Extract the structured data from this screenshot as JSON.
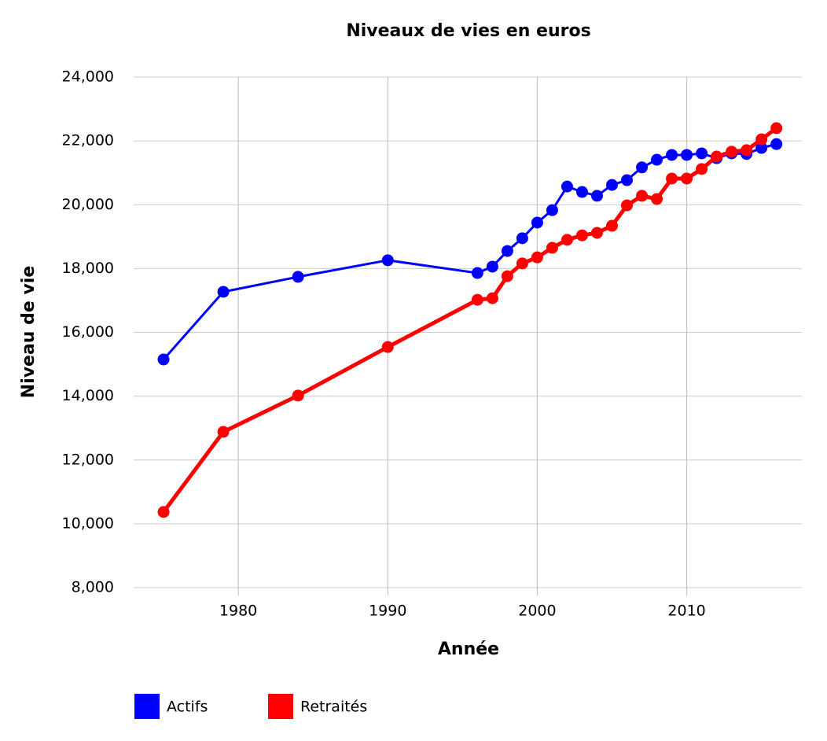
{
  "chart_data": {
    "type": "line",
    "title": "Niveaux de vies en euros",
    "x_label": "Année",
    "y_label": "Niveau de vie",
    "x": [
      1975,
      1979,
      1984,
      1990,
      1996,
      1997,
      1998,
      1999,
      2000,
      2001,
      2002,
      2003,
      2004,
      2005,
      2006,
      2007,
      2008,
      2009,
      2010,
      2011,
      2012,
      2013,
      2014,
      2015,
      2016
    ],
    "series": [
      {
        "name": "Actifs",
        "color": "#0000ff",
        "values": [
          15150,
          17270,
          17740,
          18260,
          17860,
          18060,
          18550,
          18950,
          19440,
          19830,
          20570,
          20400,
          20280,
          20620,
          20770,
          21170,
          21410,
          21560,
          21560,
          21610,
          21460,
          21610,
          21590,
          21780,
          21900
        ]
      },
      {
        "name": "Retraités",
        "color": "#ff0000",
        "values": [
          10370,
          12880,
          14020,
          15540,
          17020,
          17070,
          17760,
          18160,
          18350,
          18650,
          18900,
          19040,
          19120,
          19340,
          19980,
          20280,
          20180,
          20820,
          20820,
          21120,
          21510,
          21660,
          21710,
          22050,
          22400
        ]
      }
    ],
    "xlim": [
      1973,
      2017.7
    ],
    "xticks": [
      1980,
      1990,
      2000,
      2010
    ],
    "ylim": [
      8000,
      24000
    ],
    "yticks": [
      {
        "value": 8000,
        "label": "8,000"
      },
      {
        "value": 10000,
        "label": "10,000"
      },
      {
        "value": 12000,
        "label": "12,000"
      },
      {
        "value": 14000,
        "label": "14,000"
      },
      {
        "value": 16000,
        "label": "16,000"
      },
      {
        "value": 18000,
        "label": "18,000"
      },
      {
        "value": 20000,
        "label": "20,000"
      },
      {
        "value": 22000,
        "label": "22,000"
      },
      {
        "value": 24000,
        "label": "24,000"
      }
    ],
    "grid": true,
    "legend": "bottom-left"
  }
}
